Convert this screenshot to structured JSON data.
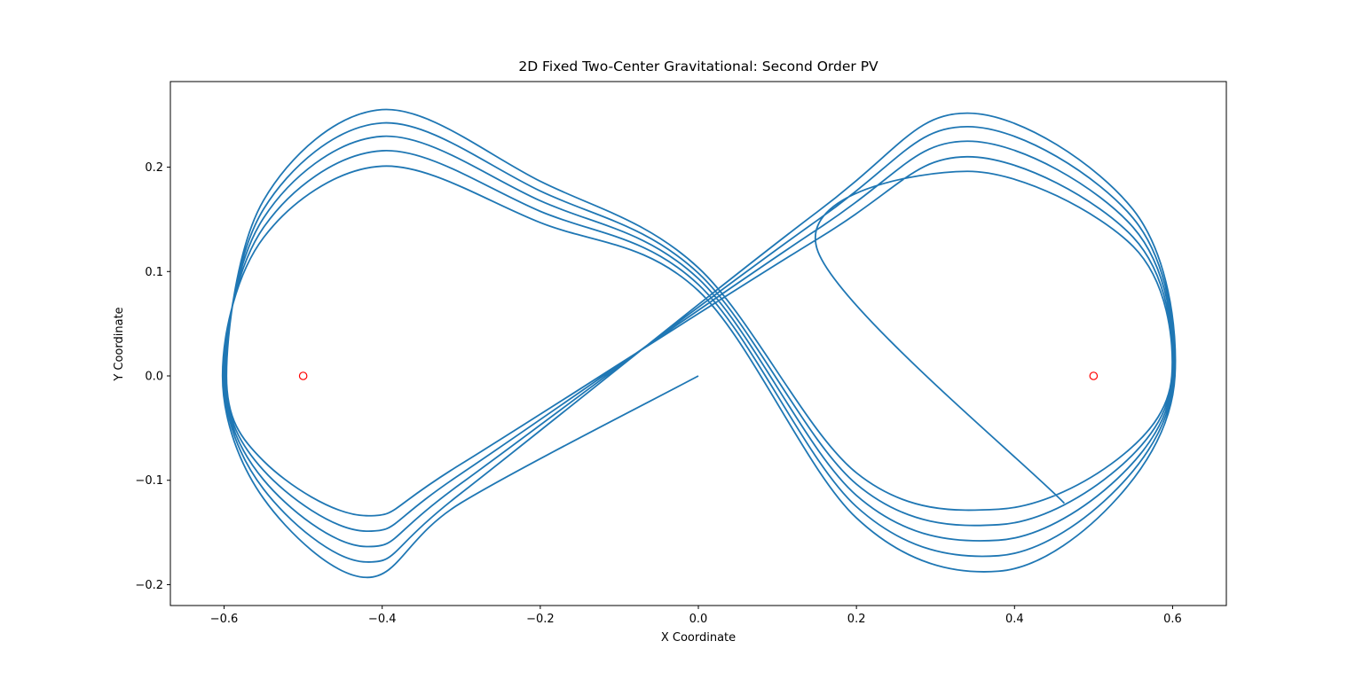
{
  "chart_data": {
    "type": "line",
    "title": "2D Fixed Two-Center Gravitational: Second Order PV",
    "xlabel": "X Coordinate",
    "ylabel": "Y Coordinate",
    "xlim": [
      -0.668,
      0.668
    ],
    "ylim": [
      -0.22,
      0.282
    ],
    "xticks": [
      -0.6,
      -0.4,
      -0.2,
      0.0,
      0.2,
      0.4,
      0.6
    ],
    "yticks": [
      -0.2,
      -0.1,
      0.0,
      0.1,
      0.2
    ],
    "xtick_labels": [
      "−0.6",
      "−0.4",
      "−0.2",
      "0.0",
      "0.2",
      "0.4",
      "0.6"
    ],
    "ytick_labels": [
      "−0.2",
      "−0.1",
      "0.0",
      "0.1",
      "0.2"
    ],
    "grid": false,
    "line_color": "#1f77b4",
    "center_color": "#ff0000",
    "orbit": {
      "name": "trajectory",
      "start": [
        0.0,
        0.0
      ],
      "end": [
        0.463,
        -0.122
      ],
      "loops": [
        {
          "left": [
            -0.602,
            0.204,
            -0.196
          ],
          "right": [
            0.603,
            0.253,
            -0.189
          ]
        },
        {
          "left": [
            -0.6,
            0.219,
            -0.181
          ],
          "right": [
            0.602,
            0.24,
            -0.174
          ]
        },
        {
          "left": [
            -0.599,
            0.233,
            -0.166
          ],
          "right": [
            0.601,
            0.226,
            -0.159
          ]
        },
        {
          "left": [
            -0.598,
            0.246,
            -0.151
          ],
          "right": [
            0.6,
            0.211,
            -0.144
          ]
        },
        {
          "left": [
            -0.597,
            0.259,
            -0.136
          ],
          "right": [
            0.599,
            0.197,
            -0.129
          ]
        }
      ]
    },
    "centers": [
      {
        "name": "center-left",
        "x": -0.5,
        "y": 0.0
      },
      {
        "name": "center-right",
        "x": 0.5,
        "y": 0.0
      }
    ]
  }
}
